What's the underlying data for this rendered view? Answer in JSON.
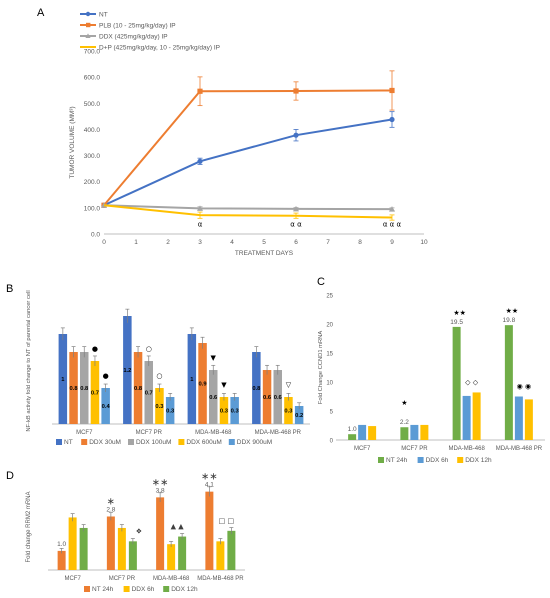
{
  "panels": [
    {
      "id": "A"
    },
    {
      "id": "B"
    },
    {
      "id": "C"
    },
    {
      "id": "D"
    }
  ],
  "chart_data": [
    {
      "panel": "A",
      "type": "line",
      "x": [
        0,
        3,
        6,
        9
      ],
      "xlabel": "TREATMENT DAYS",
      "ylabel": "TUMOR VOLUME (MM³)",
      "xlim": [
        0,
        10
      ],
      "ylim": [
        0,
        700
      ],
      "x_ticks": [
        "0",
        "1",
        "2",
        "3",
        "4",
        "5",
        "6",
        "7",
        "8",
        "9",
        "10"
      ],
      "y_ticks": [
        "0.0",
        "100.0",
        "200.0",
        "300.0",
        "400.0",
        "500.0",
        "600.0",
        "700.0"
      ],
      "legend_position": "top-left",
      "series": [
        {
          "name": "NT",
          "color": "#4472C4",
          "values": [
            110,
            278,
            378,
            438
          ],
          "errors": [
            0,
            12,
            22,
            30
          ]
        },
        {
          "name": "PLB (10 - 25mg/kg/day) IP",
          "color": "#ED7D31",
          "values": [
            110,
            546,
            547,
            549
          ],
          "errors": [
            0,
            55,
            35,
            75
          ]
        },
        {
          "name": "DDX (425mg/kg/day) IP",
          "color": "#A5A5A5",
          "values": [
            110,
            98,
            96,
            95
          ],
          "errors": [
            0,
            6,
            5,
            5
          ]
        },
        {
          "name": "D+P (425mg/kg/day, 10 - 25mg/kg/day) IP",
          "color": "#FFC000",
          "values": [
            110,
            72,
            70,
            63
          ],
          "errors": [
            0,
            12,
            10,
            10
          ]
        }
      ],
      "annotations": [
        {
          "x": 3,
          "text": "α"
        },
        {
          "x": 6,
          "text": "α α"
        },
        {
          "x": 9,
          "text": "α α α"
        }
      ]
    },
    {
      "panel": "B",
      "type": "bar",
      "categories": [
        "MCF7",
        "MCF7 PR",
        "MDA-MB-468",
        "MDA-MB-468 PR"
      ],
      "ylabel": "NF-kB activity fold change to NT of parental cancer cell",
      "ylim": [
        0,
        1.4
      ],
      "series": [
        {
          "name": "NT",
          "color": "#4472C4",
          "values": [
            1.0,
            1.2,
            1.0,
            0.8
          ]
        },
        {
          "name": "DDX 30uM",
          "color": "#ED7D31",
          "values": [
            0.8,
            0.8,
            0.9,
            0.6
          ]
        },
        {
          "name": "DDX 100uM",
          "color": "#A5A5A5",
          "values": [
            0.8,
            0.7,
            0.6,
            0.6
          ]
        },
        {
          "name": "DDX 600uM",
          "color": "#FFC000",
          "values": [
            0.7,
            0.4,
            0.3,
            0.3
          ]
        },
        {
          "name": "DDX 900uM",
          "color": "#5B9BD5",
          "values": [
            0.4,
            0.3,
            0.3,
            0.2
          ]
        }
      ],
      "data_labels": [
        [
          "1",
          "0.8",
          "0.8",
          "0.7",
          "0.4"
        ],
        [
          "1.2",
          "0.8",
          "0.7",
          "0.3",
          "0.3"
        ],
        [
          "1",
          "0.9",
          "0.6",
          "0.3",
          "0.3"
        ],
        [
          "0.8",
          "0.6",
          "0.6",
          "0.3",
          "0.2"
        ]
      ],
      "symbols": [
        {
          "category": 0,
          "series": 3,
          "text": "●"
        },
        {
          "category": 0,
          "series": 4,
          "text": "●"
        },
        {
          "category": 1,
          "series": 2,
          "text": "○"
        },
        {
          "category": 1,
          "series": 3,
          "text": "○"
        },
        {
          "category": 2,
          "series": 2,
          "text": "▼"
        },
        {
          "category": 2,
          "series": 3,
          "text": "▼"
        },
        {
          "category": 3,
          "series": 3,
          "text": "▽"
        }
      ],
      "legend_position": "bottom"
    },
    {
      "panel": "C",
      "type": "bar",
      "categories": [
        "MCF7",
        "MCF7 PR",
        "MDA-MB-468",
        "MDA-MB-468 PR"
      ],
      "ylabel": "Fold Change CCND1 mRNA",
      "ylim": [
        0,
        25
      ],
      "y_ticks": [
        "0",
        "5",
        "10",
        "15",
        "20",
        "25"
      ],
      "series": [
        {
          "name": "NT 24h",
          "color": "#70AD47",
          "values": [
            1.0,
            2.2,
            19.5,
            19.8
          ]
        },
        {
          "name": "DDX 6h",
          "color": "#5B9BD5",
          "values": [
            2.6,
            2.6,
            7.6,
            7.5
          ]
        },
        {
          "name": "DDX 12h",
          "color": "#FFC000",
          "values": [
            2.4,
            2.6,
            8.2,
            7.0
          ]
        }
      ],
      "value_labels": [
        "1.0",
        "2.2",
        "19.5",
        "19.8"
      ],
      "symbols": [
        {
          "category": 1,
          "text": "★"
        },
        {
          "category": 2,
          "text": "★★"
        },
        {
          "category": 2,
          "text": "◇ ◇"
        },
        {
          "category": 3,
          "text": "★★"
        },
        {
          "category": 3,
          "text": "◉ ◉"
        }
      ],
      "legend_position": "bottom"
    },
    {
      "panel": "D",
      "type": "bar",
      "categories": [
        "MCF7",
        "MCF7 PR",
        "MDA-MB-468",
        "MDA-MB-468 PR"
      ],
      "ylabel": "Fold change RRM2 mRNA",
      "ylim": [
        0,
        4.5
      ],
      "series": [
        {
          "name": "NT 24h",
          "color": "#ED7D31",
          "values": [
            1.0,
            2.8,
            3.8,
            4.1
          ]
        },
        {
          "name": "DDX 6h",
          "color": "#FFC000",
          "values": [
            2.75,
            2.2,
            1.35,
            1.5
          ]
        },
        {
          "name": "DDX 12h",
          "color": "#70AD47",
          "values": [
            2.2,
            1.5,
            1.75,
            2.05
          ]
        }
      ],
      "value_labels": [
        "1.0",
        "2.8",
        "3.8",
        "4.1"
      ],
      "symbols": [
        {
          "category": 1,
          "text": "∗"
        },
        {
          "category": 1,
          "text": "❖"
        },
        {
          "category": 2,
          "text": "∗∗"
        },
        {
          "category": 2,
          "text": "▲ ▲"
        },
        {
          "category": 3,
          "text": "∗∗"
        },
        {
          "category": 3,
          "text": "□ □"
        }
      ],
      "legend_position": "bottom"
    }
  ]
}
